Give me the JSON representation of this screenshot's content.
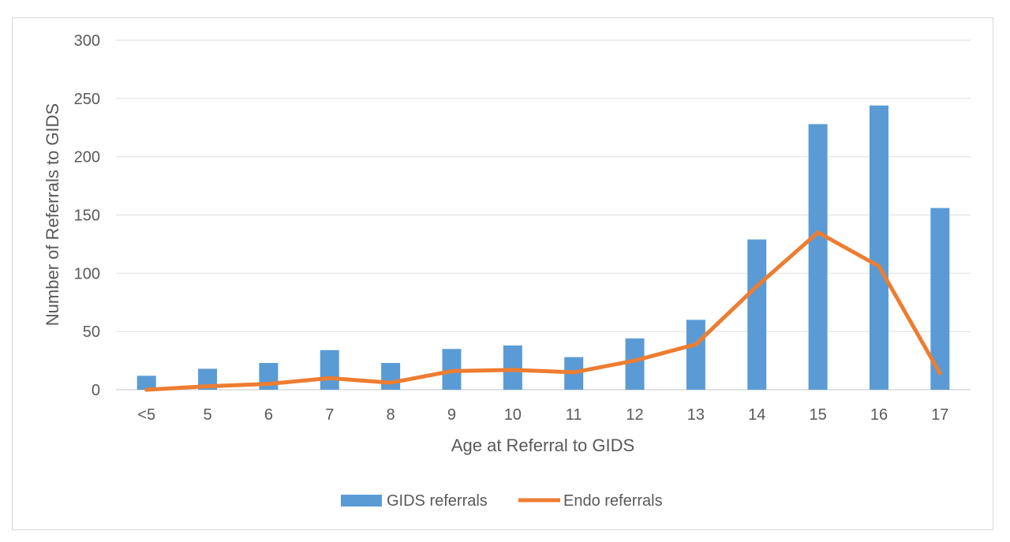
{
  "chart_data": {
    "type": "bar",
    "categories": [
      "<5",
      "5",
      "6",
      "7",
      "8",
      "9",
      "10",
      "11",
      "12",
      "13",
      "14",
      "15",
      "16",
      "17"
    ],
    "series": [
      {
        "name": "GIDS referrals",
        "type": "bar",
        "color": "#5b9bd5",
        "values": [
          12,
          18,
          23,
          34,
          23,
          35,
          38,
          28,
          44,
          60,
          129,
          228,
          244,
          156
        ]
      },
      {
        "name": "Endo referrals",
        "type": "line",
        "color": "#ed7d31",
        "values": [
          0,
          3,
          5,
          10,
          6,
          16,
          17,
          15,
          25,
          39,
          89,
          135,
          106,
          14
        ]
      }
    ],
    "xlabel": "Age at Referral to GIDS",
    "ylabel": "Number of Referrals to GIDS",
    "ylim": [
      0,
      300
    ],
    "yticks": [
      "0",
      "50",
      "100",
      "150",
      "200",
      "250",
      "300"
    ],
    "grid": true,
    "legend": "bottom"
  }
}
